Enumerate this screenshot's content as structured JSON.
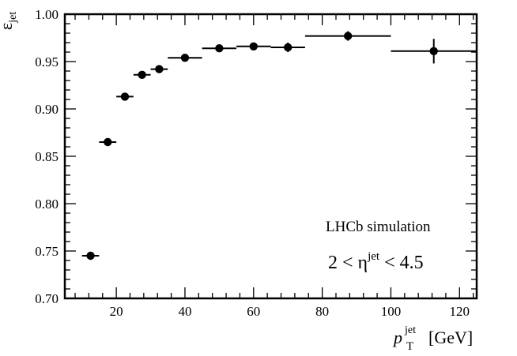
{
  "chart_data": {
    "type": "scatter",
    "xlim": [
      5,
      125
    ],
    "ylim": [
      0.7,
      1.0
    ],
    "x_ticks": [
      20,
      40,
      60,
      80,
      100,
      120
    ],
    "y_ticks": [
      0.7,
      0.75,
      0.8,
      0.85,
      0.9,
      0.95,
      1.0
    ],
    "x_tick_labels": [
      "20",
      "40",
      "60",
      "80",
      "100",
      "120"
    ],
    "y_tick_labels": [
      "0.70",
      "0.75",
      "0.80",
      "0.85",
      "0.90",
      "0.95",
      "1.00"
    ],
    "xlabel": {
      "main": "p",
      "sub": "T",
      "sup": "jet",
      "unit": "[GeV]"
    },
    "ylabel": {
      "main": "ε",
      "sub": "jet"
    },
    "annotations": {
      "line1": "LHCb simulation",
      "line2": {
        "prefix": "2 < η",
        "sup": "jet",
        "suffix": " < 4.5"
      }
    },
    "grid": false,
    "points": [
      {
        "x": 12.5,
        "xlo": 10,
        "xhi": 15,
        "y": 0.745,
        "yerr": 0.002
      },
      {
        "x": 17.5,
        "xlo": 15,
        "xhi": 20,
        "y": 0.865,
        "yerr": 0.002
      },
      {
        "x": 22.5,
        "xlo": 20,
        "xhi": 25,
        "y": 0.913,
        "yerr": 0.002
      },
      {
        "x": 27.5,
        "xlo": 25,
        "xhi": 30,
        "y": 0.936,
        "yerr": 0.002
      },
      {
        "x": 32.5,
        "xlo": 30,
        "xhi": 35,
        "y": 0.942,
        "yerr": 0.002
      },
      {
        "x": 40,
        "xlo": 35,
        "xhi": 45,
        "y": 0.954,
        "yerr": 0.002
      },
      {
        "x": 50,
        "xlo": 45,
        "xhi": 55,
        "y": 0.964,
        "yerr": 0.003
      },
      {
        "x": 60,
        "xlo": 55,
        "xhi": 65,
        "y": 0.966,
        "yerr": 0.003
      },
      {
        "x": 70,
        "xlo": 65,
        "xhi": 75,
        "y": 0.965,
        "yerr": 0.005
      },
      {
        "x": 87.5,
        "xlo": 75,
        "xhi": 100,
        "y": 0.977,
        "yerr": 0.005
      },
      {
        "x": 112.5,
        "xlo": 100,
        "xhi": 125,
        "y": 0.961,
        "yerr": 0.013
      }
    ]
  }
}
